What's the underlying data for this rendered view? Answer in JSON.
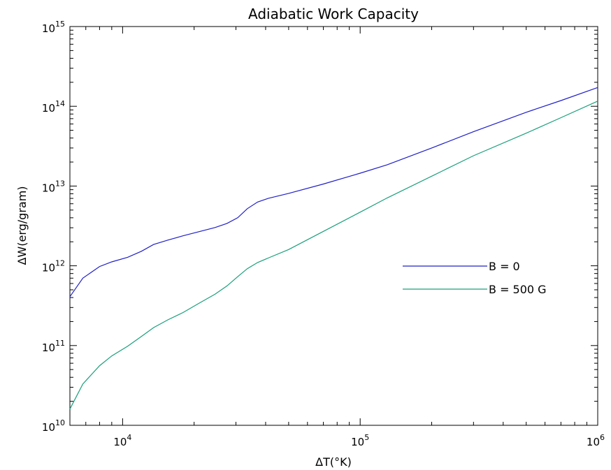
{
  "chart_data": {
    "type": "line",
    "title": "Adiabatic Work Capacity",
    "xlabel": "ΔT(°K)",
    "ylabel": "ΔW(erg/gram)",
    "xscale": "log",
    "yscale": "log",
    "xlim": [
      6000,
      1000000
    ],
    "ylim": [
      10000000000.0,
      1000000000000000.0
    ],
    "grid": false,
    "legend_position": "right",
    "x_ticks": [
      {
        "value": 10000,
        "base": "10",
        "exp": "4"
      },
      {
        "value": 100000,
        "base": "10",
        "exp": "5"
      },
      {
        "value": 1000000,
        "base": "10",
        "exp": "6"
      }
    ],
    "y_ticks": [
      {
        "value": 10000000000.0,
        "base": "10",
        "exp": "10"
      },
      {
        "value": 100000000000.0,
        "base": "10",
        "exp": "11"
      },
      {
        "value": 1000000000000.0,
        "base": "10",
        "exp": "12"
      },
      {
        "value": 10000000000000.0,
        "base": "10",
        "exp": "13"
      },
      {
        "value": 100000000000000.0,
        "base": "10",
        "exp": "14"
      },
      {
        "value": 1000000000000000.0,
        "base": "10",
        "exp": "15"
      }
    ],
    "series": [
      {
        "name": "B = 0",
        "color": "#2020c8",
        "points": [
          [
            6000,
            410000000000.0
          ],
          [
            6800,
            700000000000.0
          ],
          [
            8000,
            980000000000.0
          ],
          [
            9000,
            1120000000000.0
          ],
          [
            10500,
            1280000000000.0
          ],
          [
            12000,
            1520000000000.0
          ],
          [
            13500,
            1850000000000.0
          ],
          [
            15500,
            2100000000000.0
          ],
          [
            18000,
            2380000000000.0
          ],
          [
            21000,
            2680000000000.0
          ],
          [
            24500,
            3020000000000.0
          ],
          [
            27500,
            3400000000000.0
          ],
          [
            30500,
            4000000000000.0
          ],
          [
            33500,
            5200000000000.0
          ],
          [
            37000,
            6300000000000.0
          ],
          [
            41000,
            7000000000000.0
          ],
          [
            50000,
            8100000000000.0
          ],
          [
            70000,
            10600000000000.0
          ],
          [
            100000,
            14500000000000.0
          ],
          [
            130000,
            18500000000000.0
          ],
          [
            200000,
            30000000000000.0
          ],
          [
            300000,
            48000000000000.0
          ],
          [
            500000,
            84000000000000.0
          ],
          [
            700000,
            118000000000000.0
          ],
          [
            1000000,
            172000000000000.0
          ]
        ]
      },
      {
        "name": "B = 500 G",
        "color": "#1aa07a",
        "points": [
          [
            6000,
            16000000000.0
          ],
          [
            6800,
            33000000000.0
          ],
          [
            8000,
            56000000000.0
          ],
          [
            9000,
            74000000000.0
          ],
          [
            10500,
            98000000000.0
          ],
          [
            12000,
            130000000000.0
          ],
          [
            13500,
            168000000000.0
          ],
          [
            15500,
            210000000000.0
          ],
          [
            18000,
            260000000000.0
          ],
          [
            21000,
            340000000000.0
          ],
          [
            24500,
            440000000000.0
          ],
          [
            27500,
            560000000000.0
          ],
          [
            30500,
            730000000000.0
          ],
          [
            33500,
            920000000000.0
          ],
          [
            37000,
            1100000000000.0
          ],
          [
            41000,
            1250000000000.0
          ],
          [
            50000,
            1600000000000.0
          ],
          [
            70000,
            2700000000000.0
          ],
          [
            100000,
            4700000000000.0
          ],
          [
            130000,
            7100000000000.0
          ],
          [
            200000,
            13300000000000.0
          ],
          [
            300000,
            24000000000000.0
          ],
          [
            500000,
            46000000000000.0
          ],
          [
            700000,
            72000000000000.0
          ],
          [
            1000000,
            116000000000000.0
          ]
        ]
      }
    ]
  }
}
